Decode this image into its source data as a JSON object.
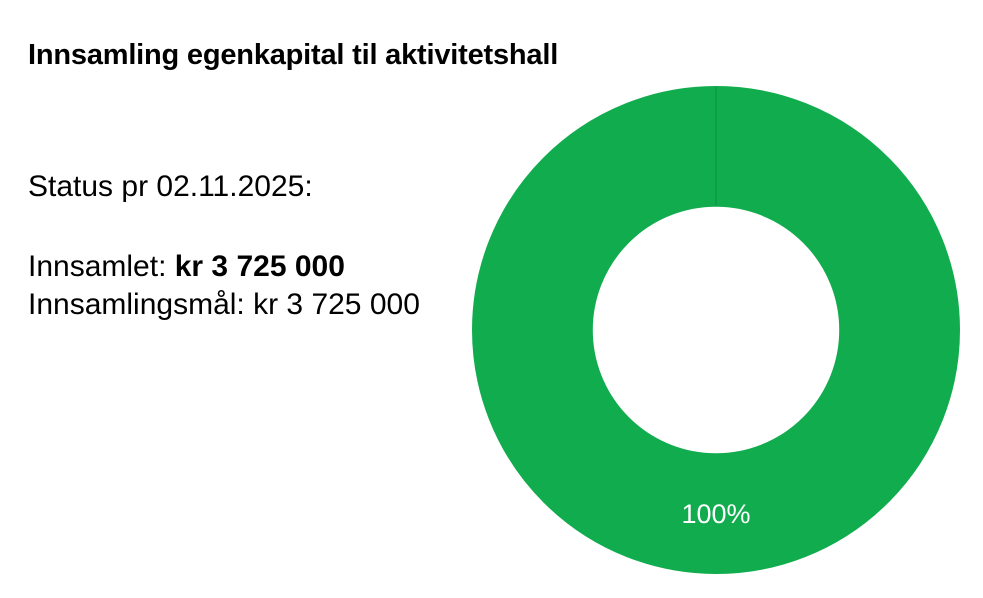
{
  "page": {
    "background": "#ffffff",
    "text_color": "#000000"
  },
  "header": {
    "title": "Innsamling egenkapital til aktivitetshall"
  },
  "status": {
    "date_line": "Status pr 02.11.2025:",
    "collected_label": "Innsamlet: ",
    "collected_value": "kr 3 725 000",
    "goal_label": "Innsamlingsmål: ",
    "goal_value": "kr 3 725 000"
  },
  "chart_data": {
    "type": "pie",
    "subtype": "donut",
    "title": "Innsamling egenkapital til aktivitetshall",
    "categories": [
      "Innsamlet"
    ],
    "values": [
      100
    ],
    "unit": "%",
    "data_labels": [
      "100%"
    ],
    "start_angle_deg": 0,
    "direction": "clockwise",
    "hole_ratio": 0.505,
    "legend": "none",
    "colors": {
      "slice": "#10ac4e",
      "seam": "#0d9a46",
      "label": "#ffffff",
      "hole": "#ffffff"
    }
  }
}
